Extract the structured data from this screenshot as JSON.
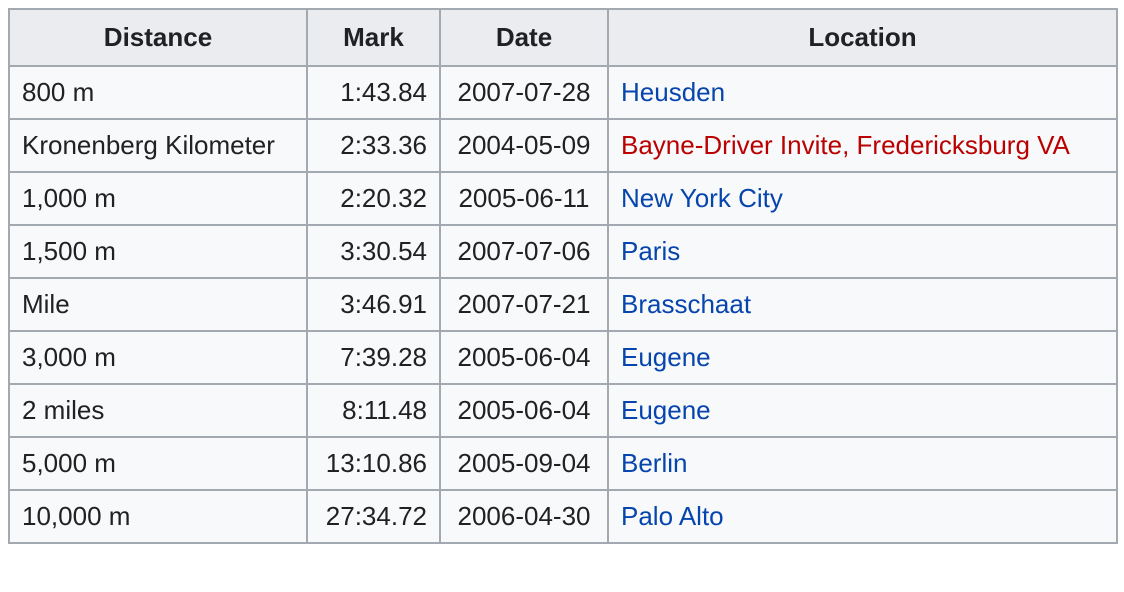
{
  "table": {
    "headers": {
      "distance": "Distance",
      "mark": "Mark",
      "date": "Date",
      "location": "Location"
    },
    "rows": [
      {
        "distance": "800 m",
        "mark": "1:43.84",
        "date": "2007-07-28",
        "location": "Heusden",
        "location_link_state": "blue"
      },
      {
        "distance": "Kronenberg Kilometer",
        "mark": "2:33.36",
        "date": "2004-05-09",
        "location": "Bayne-Driver Invite, Fredericksburg VA",
        "location_link_state": "red"
      },
      {
        "distance": "1,000 m",
        "mark": "2:20.32",
        "date": "2005-06-11",
        "location": "New York City",
        "location_link_state": "blue"
      },
      {
        "distance": "1,500 m",
        "mark": "3:30.54",
        "date": "2007-07-06",
        "location": "Paris",
        "location_link_state": "blue"
      },
      {
        "distance": "Mile",
        "mark": "3:46.91",
        "date": "2007-07-21",
        "location": "Brasschaat",
        "location_link_state": "blue"
      },
      {
        "distance": "3,000 m",
        "mark": "7:39.28",
        "date": "2005-06-04",
        "location": "Eugene",
        "location_link_state": "blue"
      },
      {
        "distance": "2 miles",
        "mark": "8:11.48",
        "date": "2005-06-04",
        "location": "Eugene",
        "location_link_state": "blue"
      },
      {
        "distance": "5,000 m",
        "mark": "13:10.86",
        "date": "2005-09-04",
        "location": "Berlin",
        "location_link_state": "blue"
      },
      {
        "distance": "10,000 m",
        "mark": "27:34.72",
        "date": "2006-04-30",
        "location": "Palo Alto",
        "location_link_state": "blue"
      }
    ]
  },
  "colors": {
    "link": "#0645ad",
    "redlink": "#ba0000",
    "header_bg": "#eaecf0",
    "cell_bg": "#f8f9fa",
    "border": "#a2a9b1",
    "text": "#202122"
  }
}
